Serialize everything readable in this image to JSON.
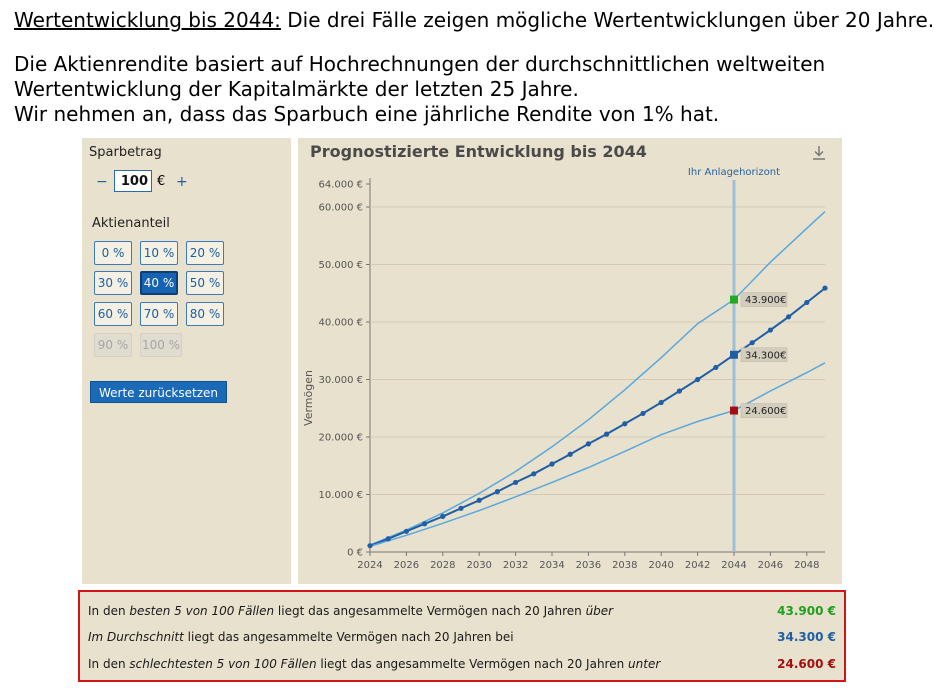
{
  "slide": {
    "title_underlined": "Wertentwicklung bis 2044:",
    "title_rest": " Die drei Fälle zeigen mögliche Wertentwicklungen über 20 Jahre.",
    "intro_lines": [
      "Die Aktienrendite basiert auf Hochrechnungen der durchschnittlichen weltweiten",
      "Wertentwicklung der Kapitalmärkte der letzten 25 Jahre.",
      "Wir nehmen an, dass das Sparbuch eine jährliche Rendite von 1% hat."
    ]
  },
  "controls": {
    "sparbetrag_label": "Sparbetrag",
    "minus": "−",
    "plus": "+",
    "amount_value": "100",
    "currency": "€",
    "aktienanteil_label": "Aktienanteil",
    "options": [
      "0 %",
      "10 %",
      "20 %",
      "30 %",
      "40 %",
      "50 %",
      "60 %",
      "70 %",
      "80 %",
      "90 %",
      "100 %"
    ],
    "selected": "40 %",
    "disabled": [
      "90 %",
      "100 %"
    ],
    "reset_label": "Werte zurücksetzen"
  },
  "chart": {
    "title": "Prognostizierte Entwicklung bis 2044",
    "download_icon": "download-icon",
    "horizon_label": "Ihr Anlagehorizont",
    "callouts": [
      "43.900€",
      "34.300€",
      "24.600€"
    ],
    "colors": {
      "best": "#22aa22",
      "avg": "#1f5fa6",
      "worst": "#a50f0f",
      "line": "#5aa7dc",
      "mean": "#1f5fa6",
      "horizon": "#9dbfd8"
    }
  },
  "chart_data": {
    "type": "line",
    "title": "Prognostizierte Entwicklung bis 2044",
    "ylabel": "Vermögen",
    "xlabel": "",
    "xlim": [
      2024,
      2049
    ],
    "ylim": [
      0,
      64000
    ],
    "x_ticks": [
      "2024",
      "2026",
      "2028",
      "2030",
      "2032",
      "2034",
      "2036",
      "2038",
      "2040",
      "2042",
      "2044",
      "2046",
      "2048"
    ],
    "y_ticks": [
      {
        "value": 0,
        "label": "0 €"
      },
      {
        "value": 10000,
        "label": "10.000 €"
      },
      {
        "value": 20000,
        "label": "20.000 €"
      },
      {
        "value": 30000,
        "label": "30.000 €"
      },
      {
        "value": 40000,
        "label": "40.000 €"
      },
      {
        "value": 50000,
        "label": "50.000 €"
      },
      {
        "value": 60000,
        "label": "60.000 €"
      },
      {
        "value": 64000,
        "label": "64.000 €"
      }
    ],
    "horizon_year": 2044,
    "series": [
      {
        "key": "upper",
        "x": [
          2024,
          2026,
          2028,
          2030,
          2032,
          2034,
          2036,
          2038,
          2040,
          2042,
          2044,
          2046,
          2048,
          2049
        ],
        "values": [
          1200,
          3800,
          6800,
          10200,
          14000,
          18300,
          23000,
          28200,
          33800,
          39700,
          43900,
          50400,
          56300,
          59200
        ]
      },
      {
        "key": "mean",
        "x": [
          2024,
          2025,
          2026,
          2027,
          2028,
          2029,
          2030,
          2031,
          2032,
          2033,
          2034,
          2035,
          2036,
          2037,
          2038,
          2039,
          2040,
          2041,
          2042,
          2043,
          2044,
          2045,
          2046,
          2047,
          2048,
          2049
        ],
        "values": [
          1100,
          2300,
          3600,
          4900,
          6200,
          7600,
          9000,
          10500,
          12100,
          13600,
          15300,
          17000,
          18800,
          20500,
          22300,
          24100,
          26000,
          28000,
          30000,
          32100,
          34300,
          36400,
          38600,
          40900,
          43400,
          45900
        ]
      },
      {
        "key": "lower",
        "x": [
          2024,
          2026,
          2028,
          2030,
          2032,
          2034,
          2036,
          2038,
          2040,
          2042,
          2044,
          2046,
          2048,
          2049
        ],
        "values": [
          1000,
          2900,
          5000,
          7200,
          9600,
          12100,
          14700,
          17500,
          20400,
          22700,
          24600,
          28000,
          31200,
          32900
        ]
      }
    ],
    "markers": [
      {
        "year": 2044,
        "value": 43900,
        "label": "43.900€"
      },
      {
        "year": 2044,
        "value": 34300,
        "label": "34.300€"
      },
      {
        "year": 2044,
        "value": 24600,
        "label": "24.600€"
      }
    ]
  },
  "results": {
    "rows": [
      {
        "pre": "In den ",
        "em": "besten 5 von 100 Fällen",
        "mid": " liegt das angesammelte Vermögen nach 20 Jahren ",
        "em2": "über",
        "value": "43.900 €"
      },
      {
        "pre": "",
        "em": "Im Durchschnitt",
        "mid": " liegt das angesammelte Vermögen nach 20 Jahren bei",
        "em2": "",
        "value": "34.300 €"
      },
      {
        "pre": "In den ",
        "em": "schlechtesten 5 von 100 Fällen",
        "mid": " liegt das angesammelte Vermögen nach 20 Jahren ",
        "em2": "unter",
        "value": "24.600 €"
      }
    ],
    "value_colors": [
      "#1fa01f",
      "#1f5fa6",
      "#a50f0f"
    ]
  }
}
